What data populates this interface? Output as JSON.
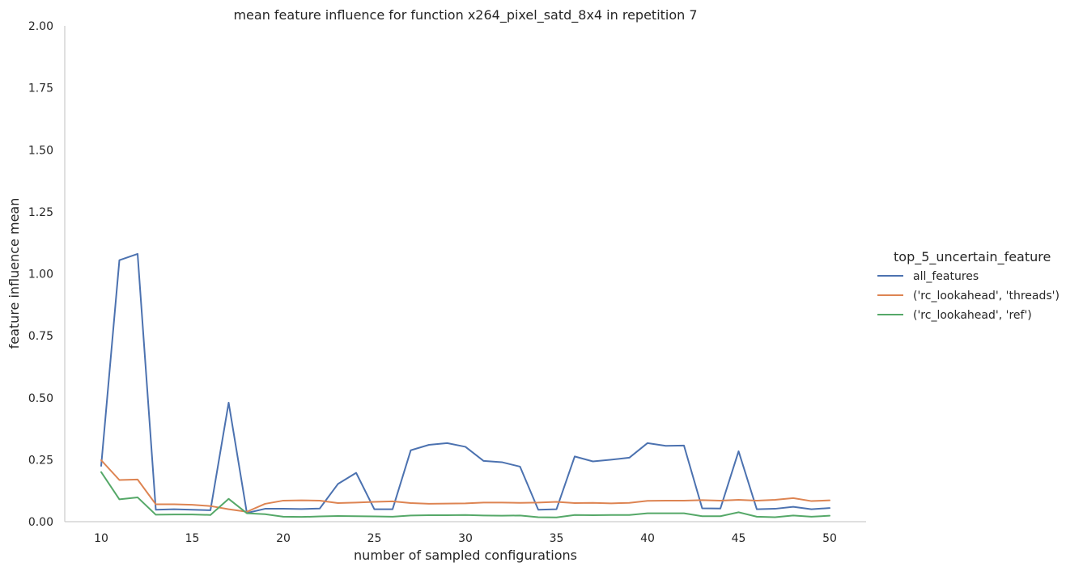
{
  "chart_data": {
    "type": "line",
    "title": "mean feature influence for function x264_pixel_satd_8x4 in repetition 7",
    "xlabel": "number of sampled configurations",
    "ylabel": "feature influence mean",
    "xlim": [
      8,
      52
    ],
    "ylim": [
      0,
      2.0
    ],
    "xticks": [
      10,
      15,
      20,
      25,
      30,
      35,
      40,
      45,
      50
    ],
    "yticks": [
      "0.00",
      "0.25",
      "0.50",
      "0.75",
      "1.00",
      "1.25",
      "1.50",
      "1.75",
      "2.00"
    ],
    "grid": false,
    "legend": {
      "title": "top_5_uncertain_feature",
      "placement": "right"
    },
    "x": [
      10,
      11,
      12,
      13,
      14,
      15,
      16,
      17,
      18,
      19,
      20,
      21,
      22,
      23,
      24,
      25,
      26,
      27,
      28,
      29,
      30,
      31,
      32,
      33,
      34,
      35,
      36,
      37,
      38,
      39,
      40,
      41,
      42,
      43,
      44,
      45,
      46,
      47,
      48,
      49,
      50
    ],
    "series": [
      {
        "name": "all_features",
        "color": "#4c72b0",
        "values": [
          0.225,
          1.055,
          1.08,
          0.048,
          0.05,
          0.048,
          0.046,
          0.48,
          0.035,
          0.052,
          0.052,
          0.051,
          0.053,
          0.152,
          0.197,
          0.05,
          0.05,
          0.288,
          0.31,
          0.317,
          0.302,
          0.245,
          0.24,
          0.222,
          0.048,
          0.05,
          0.263,
          0.243,
          0.25,
          0.258,
          0.317,
          0.306,
          0.307,
          0.054,
          0.053,
          0.284,
          0.05,
          0.052,
          0.06,
          0.05,
          0.055
        ]
      },
      {
        "name": "('rc_lookahead', 'threads')",
        "color": "#dd8452",
        "values": [
          0.248,
          0.168,
          0.17,
          0.07,
          0.07,
          0.068,
          0.063,
          0.05,
          0.04,
          0.072,
          0.085,
          0.086,
          0.085,
          0.075,
          0.077,
          0.08,
          0.082,
          0.075,
          0.072,
          0.073,
          0.074,
          0.077,
          0.077,
          0.076,
          0.077,
          0.08,
          0.075,
          0.076,
          0.074,
          0.076,
          0.084,
          0.085,
          0.085,
          0.087,
          0.085,
          0.088,
          0.085,
          0.088,
          0.095,
          0.083,
          0.086
        ]
      },
      {
        "name": "('rc_lookahead', 'ref')",
        "color": "#55a868",
        "values": [
          0.2,
          0.09,
          0.098,
          0.028,
          0.029,
          0.029,
          0.027,
          0.092,
          0.034,
          0.03,
          0.02,
          0.019,
          0.021,
          0.023,
          0.022,
          0.021,
          0.02,
          0.025,
          0.026,
          0.026,
          0.027,
          0.025,
          0.024,
          0.025,
          0.018,
          0.017,
          0.027,
          0.026,
          0.027,
          0.027,
          0.034,
          0.034,
          0.034,
          0.022,
          0.022,
          0.038,
          0.02,
          0.018,
          0.025,
          0.02,
          0.024
        ]
      }
    ]
  }
}
